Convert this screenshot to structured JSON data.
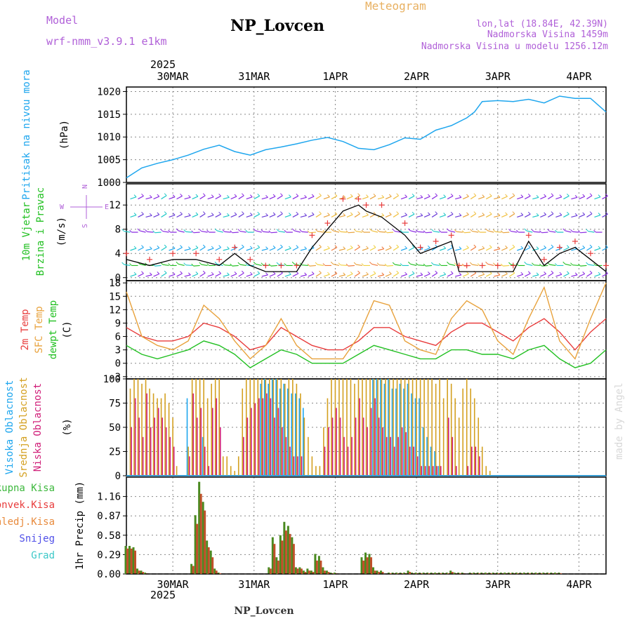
{
  "header": {
    "model_label": "Model",
    "model_name": "wrf-nmm_v3.9.1 e1km",
    "station": "NP_Lovcen",
    "meteogram": "Meteogram",
    "location_line1": "lon,lat (18.84E, 42.39N)",
    "location_line2": "Nadmorska Visina 1459m",
    "location_line3": "Nadmorska Visina u modelu 1256.12m",
    "year_top": "2025",
    "year_bottom": "2025",
    "footer_station": "NP_Lovcen",
    "credit": "made by Angel"
  },
  "colors": {
    "pressure": "#1ea6ee",
    "temp2m": "#e83c3c",
    "sfc": "#e8a23c",
    "dewpt": "#22c022",
    "cloud_high": "#1ea6ee",
    "cloud_mid": "#d4a020",
    "cloud_low": "#d01e78",
    "precip_total": "#4a8a20",
    "precip_conv": "#c0502a",
    "label_purple": "#a040d0",
    "label_orange": "#e8b060",
    "wind_speed": "#000000",
    "wind_gust": "#e83c3c"
  },
  "chart_data": [
    {
      "type": "line",
      "name": "pressure",
      "ylabel_left": "Pritisak na nivou mora",
      "ylabel_unit": "(hPa)",
      "ylim": [
        1000,
        1021
      ],
      "yticks": [
        1000,
        1005,
        1010,
        1015,
        1020
      ],
      "xlim": [
        0,
        124
      ],
      "x_ticks": [
        {
          "x": 12,
          "label": "30MAR"
        },
        {
          "x": 33,
          "label": "31MAR"
        },
        {
          "x": 54,
          "label": "1APR"
        },
        {
          "x": 75,
          "label": "2APR"
        },
        {
          "x": 96,
          "label": "3APR"
        },
        {
          "x": 117,
          "label": "4APR"
        }
      ],
      "x": [
        0,
        4,
        8,
        12,
        16,
        20,
        24,
        28,
        32,
        36,
        40,
        44,
        48,
        52,
        56,
        60,
        64,
        68,
        72,
        76,
        80,
        84,
        88,
        90,
        92,
        96,
        100,
        104,
        108,
        112,
        116,
        120,
        124
      ],
      "values": [
        1001.0,
        1003.2,
        1004.2,
        1005.0,
        1006.0,
        1007.3,
        1008.2,
        1006.8,
        1006.0,
        1007.2,
        1007.8,
        1008.5,
        1009.3,
        1009.9,
        1009.0,
        1007.5,
        1007.2,
        1008.3,
        1009.8,
        1009.5,
        1011.5,
        1012.5,
        1014.2,
        1015.5,
        1017.8,
        1018.0,
        1017.8,
        1018.3,
        1017.5,
        1019.0,
        1018.5,
        1018.5,
        1015.5
      ]
    },
    {
      "type": "line",
      "name": "wind",
      "ylabel_left": "10m Vjetar",
      "ylabel_left2": "Brzina i Pravac",
      "ylabel_unit": "(m/s)",
      "compass_n": "N",
      "compass_s": "S",
      "compass_w": "W",
      "compass_e": "E",
      "ylim": [
        -0.5,
        15.5
      ],
      "yticks": [
        0,
        4,
        8,
        12
      ],
      "xlim": [
        0,
        124
      ],
      "series": [
        {
          "x": [
            0,
            6,
            12,
            18,
            24,
            28,
            32,
            36,
            40,
            44,
            48,
            52,
            56,
            60,
            62,
            66,
            72,
            76,
            80,
            84,
            86,
            88,
            92,
            96,
            100,
            104,
            108,
            112,
            116,
            120,
            124
          ],
          "values": [
            3,
            2,
            3,
            3,
            2,
            4,
            2,
            1,
            1,
            1,
            5,
            8,
            11,
            12,
            11,
            10,
            7,
            4,
            5,
            6,
            1,
            1,
            1,
            1,
            1,
            6,
            2,
            4,
            5,
            3,
            1
          ]
        },
        {
          "x": [
            0,
            6,
            12,
            18,
            24,
            28,
            32,
            36,
            40,
            44,
            48,
            52,
            56,
            60,
            62,
            66,
            72,
            76,
            80,
            84,
            86,
            88,
            92,
            96,
            100,
            104,
            108,
            112,
            116,
            120,
            124
          ],
          "values": [
            4,
            3,
            4,
            4,
            3,
            5,
            3,
            2,
            2,
            2,
            7,
            9,
            13,
            13,
            12,
            12,
            9,
            5,
            6,
            7,
            2,
            2,
            2,
            2,
            2,
            7,
            3,
            5,
            6,
            4,
            2
          ]
        }
      ]
    },
    {
      "type": "line",
      "name": "temperature",
      "ylabel_left": "2m Temp",
      "ylabel_left2": "SFC Temp",
      "ylabel_left3": "dewpt Temp",
      "ylabel_unit": "(C)",
      "ylim": [
        -3.5,
        18.5
      ],
      "yticks": [
        -3,
        0,
        3,
        6,
        9,
        12,
        15,
        18
      ],
      "xlim": [
        0,
        124
      ],
      "x": [
        0,
        4,
        8,
        12,
        16,
        20,
        24,
        28,
        32,
        36,
        40,
        44,
        48,
        52,
        56,
        60,
        64,
        68,
        72,
        76,
        80,
        84,
        88,
        92,
        96,
        100,
        104,
        108,
        112,
        116,
        120,
        124
      ],
      "series": [
        {
          "name": "2m Temp",
          "values": [
            8,
            6,
            5,
            5,
            6,
            9,
            8,
            6,
            3,
            4,
            8,
            6,
            4,
            3,
            3,
            5,
            8,
            8,
            6,
            5,
            4,
            7,
            9,
            9,
            7,
            5,
            8,
            10,
            7,
            3,
            7,
            10
          ]
        },
        {
          "name": "SFC Temp",
          "values": [
            16,
            6,
            4,
            3,
            5,
            13,
            10,
            5,
            1,
            4,
            10,
            4,
            1,
            1,
            1,
            6,
            14,
            13,
            5,
            3,
            2,
            10,
            14,
            12,
            5,
            2,
            10,
            17,
            5,
            1,
            10,
            18
          ]
        },
        {
          "name": "dewpt Temp",
          "values": [
            4,
            2,
            1,
            2,
            3,
            5,
            4,
            2,
            -1,
            1,
            3,
            2,
            0,
            0,
            0,
            2,
            4,
            3,
            2,
            1,
            1,
            3,
            3,
            2,
            2,
            1,
            3,
            4,
            1,
            -1,
            0,
            3
          ]
        }
      ]
    },
    {
      "type": "bar",
      "name": "cloud",
      "ylabel_left": "Visoka Oblacnost",
      "ylabel_left2": "Srednja Oblacnost",
      "ylabel_left3": "Niska Oblacnost",
      "ylabel_unit": "(%)",
      "ylim": [
        0,
        100
      ],
      "yticks": [
        0,
        25,
        50,
        75,
        100
      ],
      "xlim": [
        0,
        124
      ],
      "x": [
        1,
        2,
        3,
        4,
        5,
        6,
        7,
        8,
        9,
        10,
        11,
        12,
        13,
        14,
        15,
        16,
        17,
        18,
        19,
        20,
        21,
        22,
        23,
        24,
        25,
        26,
        27,
        28,
        29,
        30,
        31,
        32,
        33,
        34,
        35,
        36,
        37,
        38,
        39,
        40,
        41,
        42,
        43,
        44,
        45,
        46,
        47,
        48,
        49,
        50,
        51,
        52,
        53,
        54,
        55,
        56,
        57,
        58,
        59,
        60,
        61,
        62,
        63,
        64,
        65,
        66,
        67,
        68,
        69,
        70,
        71,
        72,
        73,
        74,
        75,
        76,
        77,
        78,
        79,
        80,
        81,
        82,
        83,
        84,
        85,
        86,
        87,
        88,
        89,
        90,
        91,
        92,
        93,
        94,
        95,
        96,
        97,
        98,
        99,
        100,
        101,
        102,
        103,
        104,
        105,
        106,
        107,
        108,
        109,
        110,
        111,
        112
      ],
      "series": [
        {
          "name": "Visoka Oblacnost",
          "values": [
            0,
            0,
            0,
            0,
            0,
            0,
            0,
            0,
            0,
            0,
            0,
            0,
            0,
            0,
            0,
            80,
            0,
            0,
            0,
            40,
            0,
            0,
            0,
            0,
            0,
            0,
            0,
            0,
            0,
            0,
            0,
            0,
            0,
            0,
            95,
            100,
            95,
            100,
            100,
            90,
            95,
            90,
            85,
            85,
            80,
            70,
            0,
            0,
            0,
            0,
            0,
            0,
            0,
            0,
            0,
            0,
            0,
            0,
            0,
            0,
            0,
            0,
            0,
            100,
            100,
            100,
            95,
            100,
            90,
            90,
            95,
            90,
            95,
            85,
            80,
            80,
            50,
            40,
            30,
            25,
            10,
            0,
            0,
            0,
            0,
            0,
            0,
            0,
            0,
            0,
            0,
            0,
            0,
            0,
            0,
            0,
            0,
            0,
            0,
            0,
            0,
            0,
            0,
            0,
            0,
            0,
            0,
            0,
            0,
            0,
            0,
            0
          ]
        },
        {
          "name": "Srednja Oblacnost",
          "values": [
            90,
            100,
            100,
            95,
            100,
            90,
            85,
            80,
            80,
            85,
            75,
            60,
            10,
            0,
            0,
            30,
            100,
            100,
            100,
            100,
            80,
            95,
            100,
            100,
            20,
            20,
            10,
            5,
            20,
            90,
            100,
            100,
            100,
            100,
            100,
            100,
            100,
            100,
            100,
            100,
            95,
            100,
            100,
            95,
            85,
            60,
            40,
            20,
            10,
            10,
            50,
            80,
            100,
            100,
            100,
            100,
            100,
            100,
            95,
            100,
            100,
            100,
            100,
            100,
            100,
            100,
            100,
            100,
            100,
            100,
            100,
            100,
            100,
            100,
            100,
            100,
            100,
            100,
            100,
            95,
            100,
            80,
            100,
            95,
            80,
            60,
            90,
            100,
            90,
            80,
            60,
            30,
            10,
            5,
            0,
            0,
            0,
            0,
            0,
            0,
            0,
            0,
            0,
            0,
            0,
            0,
            0,
            0,
            0,
            0,
            0,
            0
          ]
        },
        {
          "name": "Niska Oblacnost",
          "values": [
            50,
            80,
            60,
            40,
            85,
            50,
            60,
            70,
            60,
            50,
            40,
            30,
            0,
            0,
            0,
            20,
            85,
            60,
            70,
            30,
            10,
            70,
            80,
            50,
            0,
            0,
            0,
            0,
            0,
            40,
            60,
            70,
            75,
            80,
            80,
            85,
            80,
            60,
            70,
            50,
            40,
            30,
            20,
            20,
            20,
            0,
            0,
            0,
            0,
            0,
            30,
            50,
            60,
            70,
            60,
            40,
            30,
            40,
            60,
            80,
            60,
            50,
            70,
            80,
            60,
            50,
            40,
            40,
            30,
            40,
            50,
            45,
            30,
            30,
            20,
            10,
            10,
            10,
            10,
            10,
            10,
            0,
            60,
            40,
            10,
            0,
            0,
            10,
            30,
            30,
            20,
            0,
            0,
            0,
            0,
            0,
            0,
            0,
            0,
            0,
            0,
            0,
            0,
            0,
            0,
            0,
            0,
            0,
            0,
            0,
            0,
            0
          ]
        }
      ]
    },
    {
      "type": "bar",
      "name": "precip",
      "ylabel_unit": "1hr Precip (mm)",
      "legend": [
        "Ukupna Kisa",
        "Konvek.Kisa",
        "Zaledj.Kisa",
        "Snijeg",
        "Grad"
      ],
      "legend_colors": [
        "#3cb83c",
        "#e83c3c",
        "#e88a3c",
        "#5050e8",
        "#3cc8c8"
      ],
      "ylim": [
        0,
        1.45
      ],
      "yticks": [
        0,
        0.29,
        0.58,
        0.87,
        1.16
      ],
      "xlim": [
        0,
        124
      ],
      "x": [
        0,
        1,
        2,
        3,
        4,
        5,
        17,
        18,
        19,
        20,
        21,
        22,
        23,
        24,
        37,
        38,
        39,
        40,
        41,
        42,
        43,
        44,
        45,
        46,
        47,
        48,
        49,
        50,
        51,
        52,
        53,
        54,
        61,
        62,
        63,
        64,
        65,
        66,
        68,
        69,
        70,
        71,
        72,
        73,
        74,
        75,
        76,
        77,
        78,
        79,
        80,
        81,
        82,
        83,
        84,
        85,
        86,
        87,
        89,
        90,
        91,
        92,
        93,
        94,
        95,
        96,
        97,
        98,
        99,
        100,
        101,
        102,
        103,
        104,
        105,
        106,
        107,
        108,
        109,
        110,
        111,
        112
      ],
      "series": [
        {
          "name": "Ukupna Kisa",
          "values": [
            0.42,
            0.42,
            0.4,
            0.08,
            0.05,
            0.02,
            0.15,
            0.88,
            1.38,
            1.08,
            0.5,
            0.35,
            0.08,
            0.02,
            0.1,
            0.55,
            0.25,
            0.58,
            0.78,
            0.72,
            0.55,
            0.1,
            0.1,
            0.05,
            0.08,
            0.05,
            0.3,
            0.27,
            0.1,
            0.05,
            0.02,
            0.02,
            0.25,
            0.32,
            0.3,
            0.1,
            0.05,
            0.05,
            0.02,
            0.02,
            0.02,
            0.02,
            0.02,
            0.05,
            0.02,
            0.02,
            0.02,
            0.02,
            0.02,
            0.02,
            0.02,
            0.02,
            0.02,
            0.02,
            0.05,
            0.02,
            0.02,
            0.02,
            0.02,
            0.02,
            0.02,
            0.02,
            0.02,
            0.02,
            0.02,
            0.02,
            0.02,
            0.02,
            0.02,
            0.02,
            0.02,
            0.02,
            0.02,
            0.02,
            0.02,
            0.02,
            0.02,
            0.02,
            0.02,
            0.02,
            0.02,
            0.02
          ]
        },
        {
          "name": "Konvek.Kisa",
          "values": [
            0.38,
            0.38,
            0.35,
            0.05,
            0.03,
            0.01,
            0.12,
            0.75,
            1.2,
            0.95,
            0.4,
            0.25,
            0.05,
            0.01,
            0.08,
            0.45,
            0.2,
            0.5,
            0.65,
            0.6,
            0.45,
            0.08,
            0.08,
            0.03,
            0.05,
            0.03,
            0.2,
            0.2,
            0.05,
            0.03,
            0.01,
            0.01,
            0.2,
            0.25,
            0.25,
            0.05,
            0.03,
            0.03,
            0.01,
            0.01,
            0.01,
            0.01,
            0.01,
            0.03,
            0.01,
            0.01,
            0.01,
            0.01,
            0.01,
            0.01,
            0.01,
            0.01,
            0.01,
            0.01,
            0.03,
            0.01,
            0.01,
            0.01,
            0.01,
            0.01,
            0.01,
            0.01,
            0.01,
            0.01,
            0.01,
            0.01,
            0.01,
            0.01,
            0.01,
            0.01,
            0.01,
            0.01,
            0.01,
            0.01,
            0.01,
            0.01,
            0.01,
            0.01,
            0.01,
            0.01,
            0.01,
            0.01
          ]
        }
      ]
    }
  ]
}
